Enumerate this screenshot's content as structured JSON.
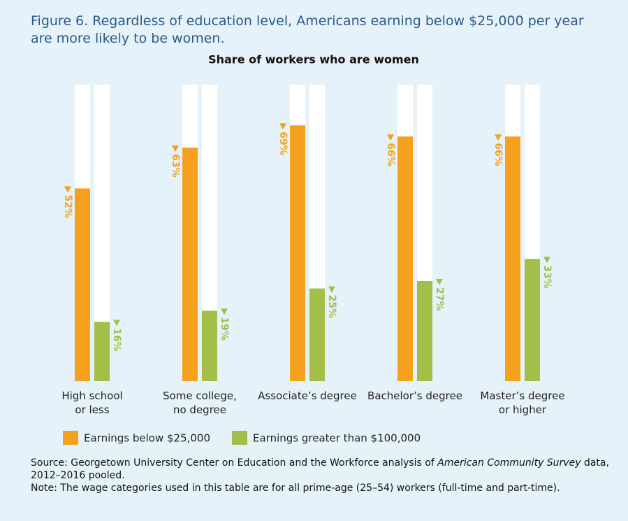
{
  "chart_data": {
    "type": "bar",
    "title": "Figure 6. Regardless of education level, Americans earning below $25,000 per year are more likely to be women.",
    "subtitle": "Share of workers who are women",
    "categories": [
      "High school\nor less",
      "Some college,\nno degree",
      "Associate’s degree",
      "Bachelor’s degree",
      "Master’s degree\nor higher"
    ],
    "series": [
      {
        "name": "Earnings below $25,000",
        "color": "#f5a11d",
        "values": [
          52,
          63,
          69,
          66,
          66
        ],
        "value_labels": [
          "52%",
          "63%",
          "69%",
          "66%",
          "66%"
        ]
      },
      {
        "name": "Earnings greater than $100,000",
        "color": "#a4bf49",
        "values": [
          16,
          19,
          25,
          27,
          33
        ],
        "value_labels": [
          "16%",
          "19%",
          "25%",
          "27%",
          "33%"
        ]
      }
    ],
    "ylim": [
      0,
      80
    ],
    "source": [
      "Source: Georgetown University Center on Education and the Workforce analysis of ",
      "American Community Survey",
      " data,",
      "2012–2016 pooled."
    ],
    "note": "Note: The wage categories used in this table are for all prime-age (25–54) workers (full-time and part-time)."
  }
}
